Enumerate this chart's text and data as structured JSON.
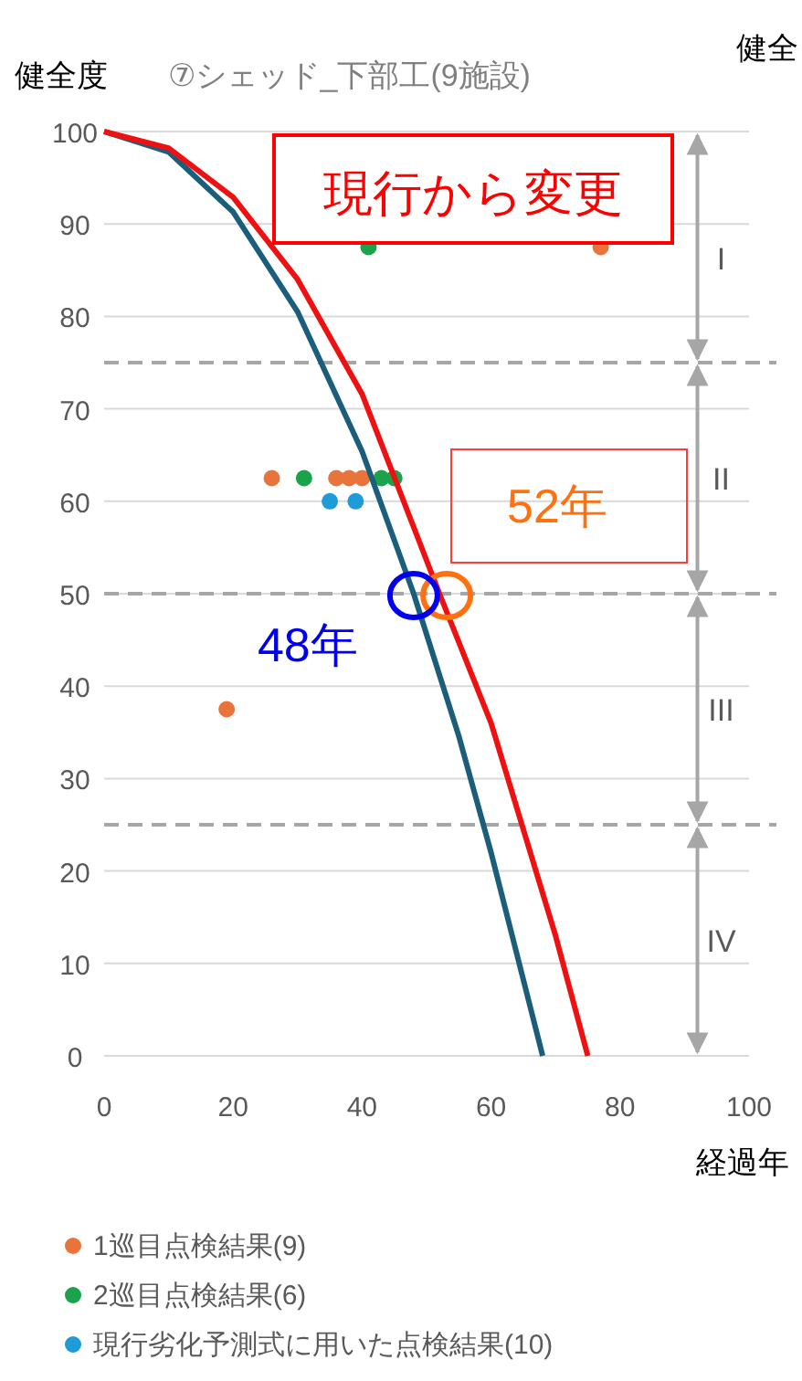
{
  "chart_data": {
    "type": "scatter",
    "title": "⑦シェッド_下部工(9施設)",
    "ylabel": "健全度",
    "xlabel": "経過年",
    "xlim": [
      0,
      100
    ],
    "ylim": [
      0,
      100
    ],
    "xticks": [
      0,
      20,
      40,
      60,
      80,
      100
    ],
    "yticks": [
      0,
      10,
      20,
      30,
      40,
      50,
      60,
      70,
      80,
      90,
      100
    ],
    "grid": "y",
    "legend": "bottom",
    "marker": "circle",
    "series": [
      {
        "name": "1巡目点検結果(9)",
        "color": "#e8743b",
        "x": [
          19,
          26,
          36,
          38,
          40,
          77
        ],
        "values": [
          37.5,
          62.5,
          62.5,
          62.5,
          62.5,
          87.5
        ]
      },
      {
        "name": "2巡目点検結果(6)",
        "color": "#1aa34a",
        "x": [
          31,
          41,
          43,
          45
        ],
        "values": [
          62.5,
          87.5,
          62.5,
          62.5
        ]
      },
      {
        "name": "現行劣化予測式に用いた点検結果(10)",
        "color": "#1f9bd7",
        "x": [
          35,
          39
        ],
        "values": [
          60,
          60
        ]
      },
      {
        "type": "line",
        "marker": "none",
        "color": "#1b5e7b",
        "x": [
          0,
          10,
          20,
          30,
          40,
          48,
          55,
          60,
          68
        ],
        "values": [
          100,
          97.8,
          91.3,
          80.5,
          65.4,
          50,
          34.6,
          22,
          0
        ]
      },
      {
        "type": "line",
        "marker": "none",
        "color": "#ee1111",
        "x": [
          0,
          10,
          20,
          30,
          40,
          52,
          60,
          70,
          75
        ],
        "values": [
          100,
          98.2,
          92.9,
          84,
          71.6,
          50,
          36,
          13,
          0
        ]
      }
    ],
    "ref_lines": [
      {
        "axis": "y",
        "value": 75,
        "color": "#a6a6a6",
        "line_style": "dashed"
      },
      {
        "axis": "y",
        "value": 50,
        "color": "#a6a6a6",
        "line_style": "dashed"
      },
      {
        "axis": "y",
        "value": 25,
        "color": "#a6a6a6",
        "line_style": "dashed"
      }
    ],
    "annotations": [
      "現行から変更",
      {
        "text": "52年",
        "x": 52,
        "y": 50
      },
      {
        "text": "48年",
        "x": 48,
        "y": 50
      },
      "健全",
      "I",
      "II",
      "III",
      "IV"
    ]
  }
}
